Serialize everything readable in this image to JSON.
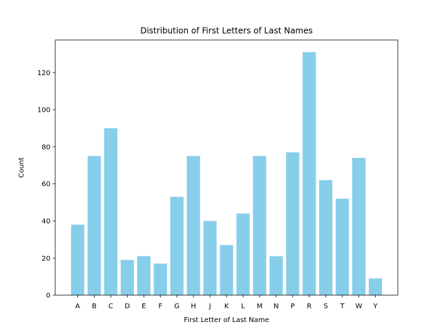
{
  "chart_data": {
    "type": "bar",
    "title": "Distribution of First Letters of Last Names",
    "xlabel": "First Letter of Last Name",
    "ylabel": "Count",
    "categories": [
      "A",
      "B",
      "C",
      "D",
      "E",
      "F",
      "G",
      "H",
      "J",
      "K",
      "L",
      "M",
      "N",
      "P",
      "R",
      "S",
      "T",
      "W",
      "Y"
    ],
    "values": [
      38,
      75,
      90,
      19,
      21,
      17,
      53,
      75,
      40,
      27,
      44,
      75,
      21,
      77,
      131,
      62,
      52,
      74,
      9
    ],
    "ylim": [
      0,
      137.55
    ],
    "yticks": [
      0,
      20,
      40,
      60,
      80,
      100,
      120
    ],
    "bar_color": "#87ceeb",
    "grid": false
  }
}
